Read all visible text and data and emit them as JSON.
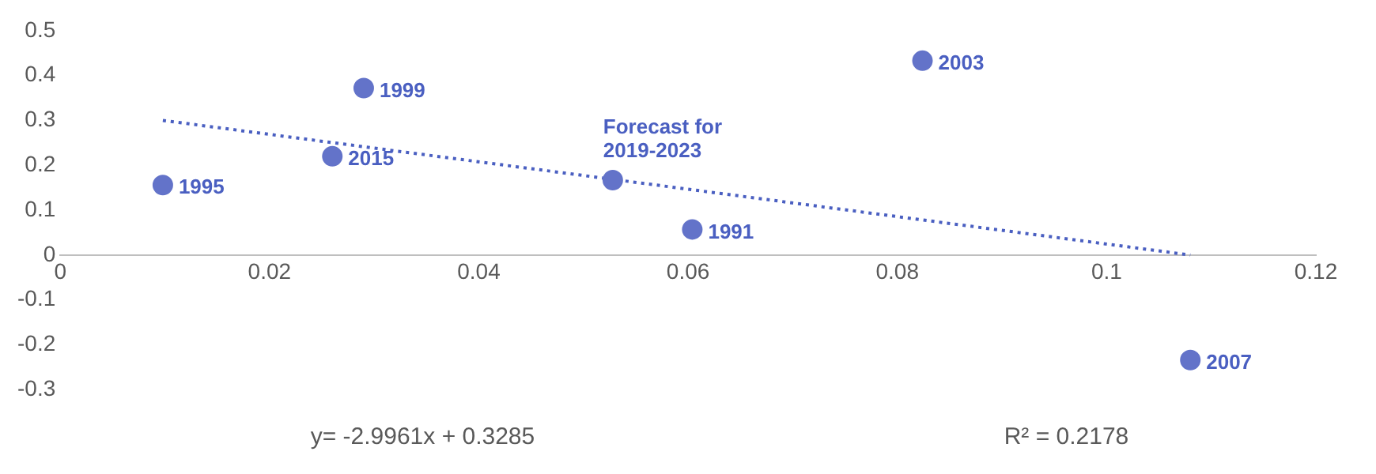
{
  "chart_data": {
    "type": "scatter",
    "series": [
      {
        "color": "#6373c9",
        "x": [
          0.0098,
          0.026,
          0.029,
          0.0528,
          0.0604,
          0.0824,
          0.108
        ],
        "values": [
          0.156,
          0.22,
          0.372,
          0.167,
          0.057,
          0.433,
          -0.234
        ],
        "marker": "circle"
      },
      {
        "type": "line",
        "color": "#4a5fc1",
        "x": [
          0.0098,
          0.108
        ],
        "values": [
          0.3,
          0.0
        ],
        "marker": "none",
        "line_style": "dotted"
      }
    ],
    "xlim": [
      0,
      0.12
    ],
    "xticks": [
      0,
      0.02,
      0.04,
      0.06,
      0.08,
      0.1,
      0.12
    ],
    "ylim": [
      -0.3,
      0.5
    ],
    "yticks": [
      -0.3,
      -0.2,
      -0.1,
      0,
      0.1,
      0.2,
      0.3,
      0.4,
      0.5
    ],
    "grid": false,
    "legend": false,
    "annotations": [
      {
        "text": "1995",
        "x": 0.0098,
        "y": 0.156
      },
      {
        "text": "2015",
        "x": 0.026,
        "y": 0.22
      },
      {
        "text": "1999",
        "x": 0.029,
        "y": 0.372
      },
      {
        "text": "Forecast for\n2019-2023",
        "x": 0.0528,
        "y": 0.167
      },
      {
        "text": "1991",
        "x": 0.0604,
        "y": 0.057
      },
      {
        "text": "2003",
        "x": 0.0824,
        "y": 0.433
      },
      {
        "text": "2007",
        "x": 0.108,
        "y": -0.234
      },
      "y= -2.9961x + 0.3285",
      "R² = 0.2178"
    ]
  }
}
